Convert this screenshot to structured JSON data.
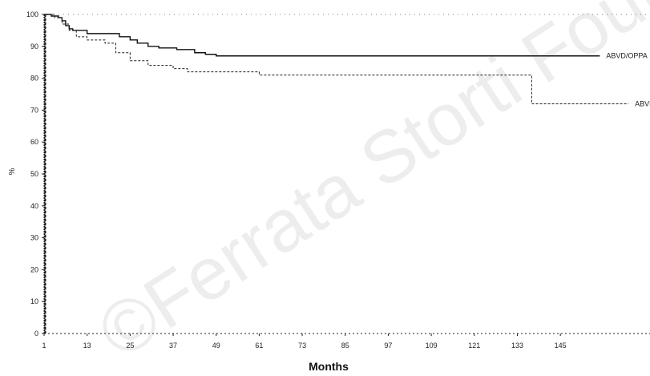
{
  "watermark": "©Ferrata Storti Foundation",
  "chart_data": {
    "type": "line",
    "title": "",
    "xlabel": "Months",
    "ylabel": "%",
    "xlim": [
      1,
      170
    ],
    "ylim": [
      0,
      100
    ],
    "xticks": [
      1,
      13,
      25,
      37,
      49,
      61,
      73,
      85,
      97,
      109,
      121,
      133,
      145
    ],
    "yticks": [
      0,
      10,
      20,
      30,
      40,
      50,
      60,
      70,
      80,
      90,
      100
    ],
    "grid": false,
    "series": [
      {
        "name": "ABVD/OPPA",
        "style": "solid",
        "color": "#111111",
        "x": [
          1,
          3,
          5,
          6,
          7,
          8,
          9,
          11,
          13,
          22,
          25,
          27,
          30,
          33,
          38,
          43,
          46,
          49,
          121,
          156
        ],
        "y": [
          100,
          99.5,
          99,
          98,
          96.5,
          95.5,
          95,
          95,
          94,
          93,
          92,
          91,
          90,
          89.5,
          89,
          88,
          87.5,
          87,
          87,
          87
        ]
      },
      {
        "name": "ABVD/MOPP",
        "style": "dashed",
        "color": "#222222",
        "x": [
          1,
          4,
          6,
          8,
          10,
          13,
          18,
          21,
          25,
          30,
          37,
          41,
          57,
          61,
          136,
          137,
          164
        ],
        "y": [
          100,
          99,
          97,
          95,
          93,
          92,
          91,
          88,
          85.5,
          84,
          83,
          82,
          82,
          81,
          81,
          72,
          72
        ]
      }
    ]
  }
}
